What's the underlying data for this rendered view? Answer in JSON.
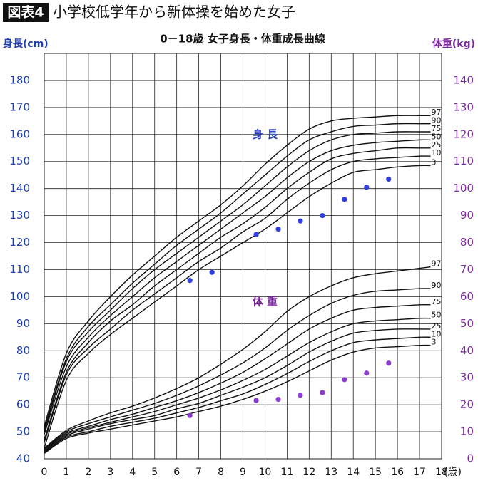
{
  "header": {
    "badge": "図表4",
    "title": "小学校低学年から新体操を始めた女子"
  },
  "chart_data": {
    "type": "line",
    "title": "0－18歳 女子身長・体重成長曲線",
    "ylabel": "身長(cm)",
    "y2label": "体重(kg)",
    "xlabel": "(歳)",
    "annotations": [
      {
        "text": "身 長",
        "x": 10,
        "y": 160,
        "color": "#2a3fbf"
      },
      {
        "text": "体 重",
        "x": 10,
        "y": 98,
        "color": "#7b2a9c"
      }
    ],
    "xlim": [
      0,
      18
    ],
    "xticks": [
      0,
      1,
      2,
      3,
      4,
      5,
      6,
      7,
      8,
      9,
      10,
      11,
      12,
      13,
      14,
      15,
      16,
      17,
      18
    ],
    "ylim": [
      40,
      190
    ],
    "yticks": [
      40,
      50,
      60,
      70,
      80,
      90,
      100,
      110,
      120,
      130,
      140,
      150,
      160,
      170,
      180
    ],
    "y2lim": [
      0,
      150
    ],
    "y2ticks": [
      0,
      10,
      20,
      30,
      40,
      50,
      60,
      70,
      80,
      90,
      100,
      110,
      120,
      130,
      140
    ],
    "ycolor": "#1f3fb0",
    "y2color": "#7b2a9c",
    "grid": true,
    "series": [
      {
        "name": "3",
        "style": "line",
        "color": "#111",
        "x": [
          0,
          1,
          2,
          3,
          4,
          5,
          6,
          7,
          8,
          9,
          10,
          11,
          12,
          13,
          14,
          15,
          16,
          17,
          17.5
        ],
        "values": [
          44,
          69,
          79,
          86,
          92,
          98,
          104,
          110,
          115,
          120,
          125,
          131,
          137,
          142,
          146,
          147,
          148,
          148.5,
          148.5
        ]
      },
      {
        "name": "10",
        "style": "line",
        "color": "#111",
        "x": [
          0,
          1,
          2,
          3,
          4,
          5,
          6,
          7,
          8,
          9,
          10,
          11,
          12,
          13,
          14,
          15,
          16,
          17,
          17.5
        ],
        "values": [
          46,
          71,
          81,
          88,
          95,
          101,
          107,
          113,
          118,
          124,
          129,
          136,
          142,
          147,
          150,
          151,
          151.5,
          152,
          152
        ]
      },
      {
        "name": "25",
        "style": "line",
        "color": "#111",
        "x": [
          0,
          1,
          2,
          3,
          4,
          5,
          6,
          7,
          8,
          9,
          10,
          11,
          12,
          13,
          14,
          15,
          16,
          17,
          17.5
        ],
        "values": [
          47,
          72,
          83,
          91,
          97,
          104,
          110,
          116,
          122,
          127,
          133,
          140,
          146,
          151,
          153,
          154,
          155,
          155,
          155
        ]
      },
      {
        "name": "50",
        "style": "line",
        "color": "#111",
        "x": [
          0,
          1,
          2,
          3,
          4,
          5,
          6,
          7,
          8,
          9,
          10,
          11,
          12,
          13,
          14,
          15,
          16,
          17,
          17.5
        ],
        "values": [
          49,
          74,
          85,
          93,
          100,
          107,
          113,
          119,
          125,
          131,
          137,
          144,
          150,
          154,
          156,
          157,
          157.5,
          158,
          158
        ]
      },
      {
        "name": "75",
        "style": "line",
        "color": "#111",
        "x": [
          0,
          1,
          2,
          3,
          4,
          5,
          6,
          7,
          8,
          9,
          10,
          11,
          12,
          13,
          14,
          15,
          16,
          17,
          17.5
        ],
        "values": [
          50,
          76,
          87,
          95,
          103,
          110,
          116,
          122,
          128,
          134,
          141,
          148,
          154,
          158,
          160,
          160.5,
          161,
          161,
          161
        ]
      },
      {
        "name": "90",
        "style": "line",
        "color": "#111",
        "x": [
          0,
          1,
          2,
          3,
          4,
          5,
          6,
          7,
          8,
          9,
          10,
          11,
          12,
          13,
          14,
          15,
          16,
          17,
          17.5
        ],
        "values": [
          51,
          77,
          89,
          97,
          105,
          112,
          119,
          125,
          131,
          138,
          145,
          152,
          158,
          161,
          163,
          163.5,
          164,
          164,
          164
        ]
      },
      {
        "name": "97",
        "style": "line",
        "color": "#111",
        "x": [
          0,
          1,
          2,
          3,
          4,
          5,
          6,
          7,
          8,
          9,
          10,
          11,
          12,
          13,
          14,
          15,
          16,
          17,
          17.5
        ],
        "values": [
          52,
          79,
          91,
          100,
          108,
          115,
          122,
          128,
          134,
          141,
          149,
          156,
          162,
          165,
          166,
          166.5,
          167,
          167,
          167
        ]
      },
      {
        "name": "3",
        "style": "line",
        "axis": "y2",
        "color": "#111",
        "x": [
          0,
          1,
          2,
          3,
          4,
          5,
          6,
          7,
          8,
          9,
          10,
          11,
          12,
          13,
          14,
          15,
          16,
          17,
          17.5
        ],
        "values": [
          2,
          7.5,
          9.5,
          11,
          12.5,
          14,
          15.5,
          17.5,
          19.5,
          22,
          25,
          28.5,
          32.5,
          36.5,
          39.5,
          41,
          41.5,
          42,
          42
        ]
      },
      {
        "name": "10",
        "style": "line",
        "axis": "y2",
        "color": "#111",
        "x": [
          0,
          1,
          2,
          3,
          4,
          5,
          6,
          7,
          8,
          9,
          10,
          11,
          12,
          13,
          14,
          15,
          16,
          17,
          17.5
        ],
        "values": [
          2.3,
          8,
          10,
          12,
          13.5,
          15,
          17,
          19,
          21.5,
          24,
          27.5,
          31.5,
          36,
          40,
          43,
          44,
          44.5,
          45,
          45
        ]
      },
      {
        "name": "25",
        "style": "line",
        "axis": "y2",
        "color": "#111",
        "x": [
          0,
          1,
          2,
          3,
          4,
          5,
          6,
          7,
          8,
          9,
          10,
          11,
          12,
          13,
          14,
          15,
          16,
          17,
          17.5
        ],
        "values": [
          2.6,
          8.5,
          11,
          13,
          14.5,
          16,
          18.5,
          20.5,
          23.5,
          26.5,
          30,
          34.5,
          39.5,
          43.5,
          46.5,
          47.5,
          48,
          48,
          48
        ]
      },
      {
        "name": "50",
        "style": "line",
        "axis": "y2",
        "color": "#111",
        "x": [
          0,
          1,
          2,
          3,
          4,
          5,
          6,
          7,
          8,
          9,
          10,
          11,
          12,
          13,
          14,
          15,
          16,
          17,
          17.5
        ],
        "values": [
          3,
          9,
          11.5,
          13.5,
          15.5,
          17.5,
          20,
          22.5,
          25.5,
          29,
          33,
          38,
          43,
          47,
          50,
          51,
          51.5,
          52,
          52
        ]
      },
      {
        "name": "75",
        "style": "line",
        "axis": "y2",
        "color": "#111",
        "x": [
          0,
          1,
          2,
          3,
          4,
          5,
          6,
          7,
          8,
          9,
          10,
          11,
          12,
          13,
          14,
          15,
          16,
          17,
          17.5
        ],
        "values": [
          3.3,
          9.5,
          12,
          14.5,
          16.5,
          19,
          21.5,
          24.5,
          28,
          32,
          37,
          42.5,
          48,
          52,
          55,
          56,
          56.5,
          57,
          57
        ]
      },
      {
        "name": "90",
        "style": "line",
        "axis": "y2",
        "color": "#111",
        "x": [
          0,
          1,
          2,
          3,
          4,
          5,
          6,
          7,
          8,
          9,
          10,
          11,
          12,
          13,
          14,
          15,
          16,
          17,
          17.5
        ],
        "values": [
          3.6,
          10,
          13,
          15.5,
          18,
          20.5,
          23.5,
          27,
          31,
          35.5,
          41,
          47.5,
          53,
          57.5,
          60.5,
          62,
          62.5,
          63,
          63
        ]
      },
      {
        "name": "97",
        "style": "line",
        "axis": "y2",
        "color": "#111",
        "x": [
          0,
          1,
          2,
          3,
          4,
          5,
          6,
          7,
          8,
          9,
          10,
          11,
          12,
          13,
          14,
          15,
          16,
          17,
          17.5
        ],
        "values": [
          3.9,
          10.5,
          14,
          17,
          19.5,
          22.5,
          26,
          30,
          35,
          40.5,
          47,
          54.5,
          60,
          64,
          67,
          68.5,
          69.5,
          70.5,
          71
        ]
      },
      {
        "style": "points",
        "color": "#2f3ee0",
        "x": [
          6.6,
          7.6,
          9.6,
          10.6,
          11.6,
          12.6,
          13.6,
          14.6,
          15.6
        ],
        "values": [
          106,
          109,
          123,
          125,
          128,
          130,
          136,
          140.5,
          143.5
        ]
      },
      {
        "style": "points",
        "axis": "y2",
        "color": "#8a3bd0",
        "x": [
          6.6,
          9.6,
          10.6,
          11.6,
          12.6,
          13.6,
          14.6,
          15.6
        ],
        "values": [
          16,
          21.6,
          22,
          23.5,
          24.5,
          29.3,
          31.7,
          35.4
        ]
      }
    ]
  }
}
